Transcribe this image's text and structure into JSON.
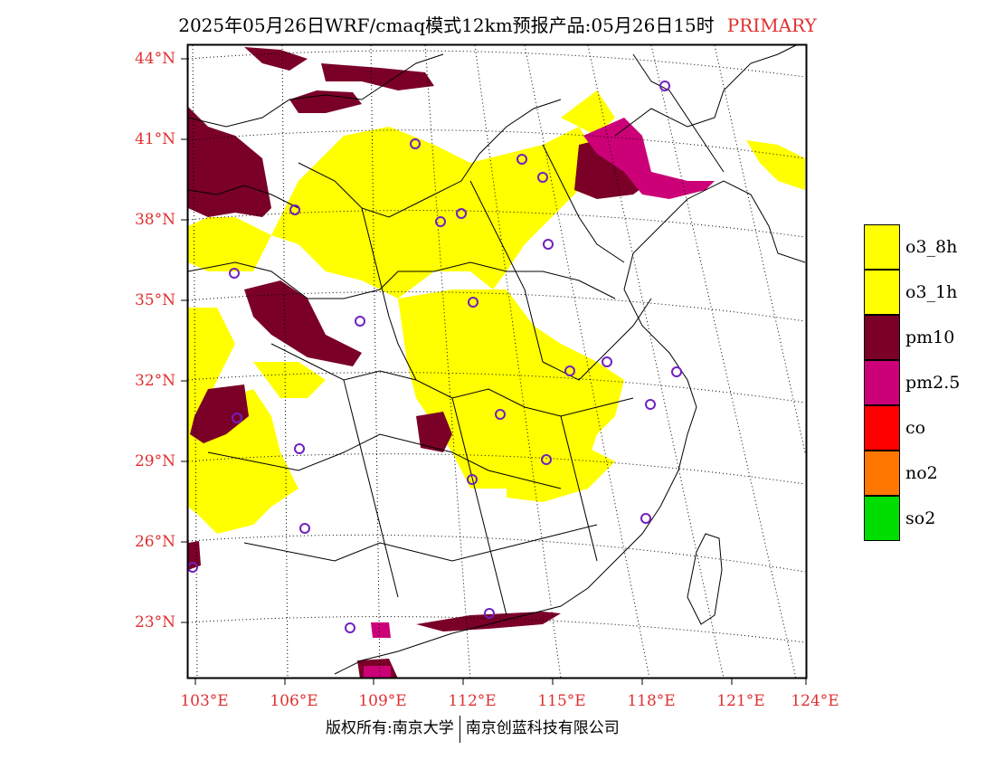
{
  "title": "2025年05月26日WRF/cmaq模式12km预报产品:05月26日15时",
  "title_tag": "PRIMARY",
  "lat_labels": [
    "44°N",
    "41°N",
    "38°N",
    "35°N",
    "32°N",
    "29°N",
    "26°N",
    "23°N"
  ],
  "lon_labels": [
    "103°E",
    "106°E",
    "109°E",
    "112°E",
    "115°E",
    "118°E",
    "121°E",
    "124°E"
  ],
  "legend": [
    {
      "label": "o3_8h",
      "color": "#ffff00"
    },
    {
      "label": "o3_1h",
      "color": "#ffff00"
    },
    {
      "label": "pm10",
      "color": "#7a0028"
    },
    {
      "label": "pm2.5",
      "color": "#cc0077"
    },
    {
      "label": "co",
      "color": "#ff0000"
    },
    {
      "label": "no2",
      "color": "#ff7700"
    },
    {
      "label": "so2",
      "color": "#00dd00"
    }
  ],
  "footer": {
    "left": "版权所有:南京大学",
    "right": "南京创蓝科技有限公司"
  }
}
